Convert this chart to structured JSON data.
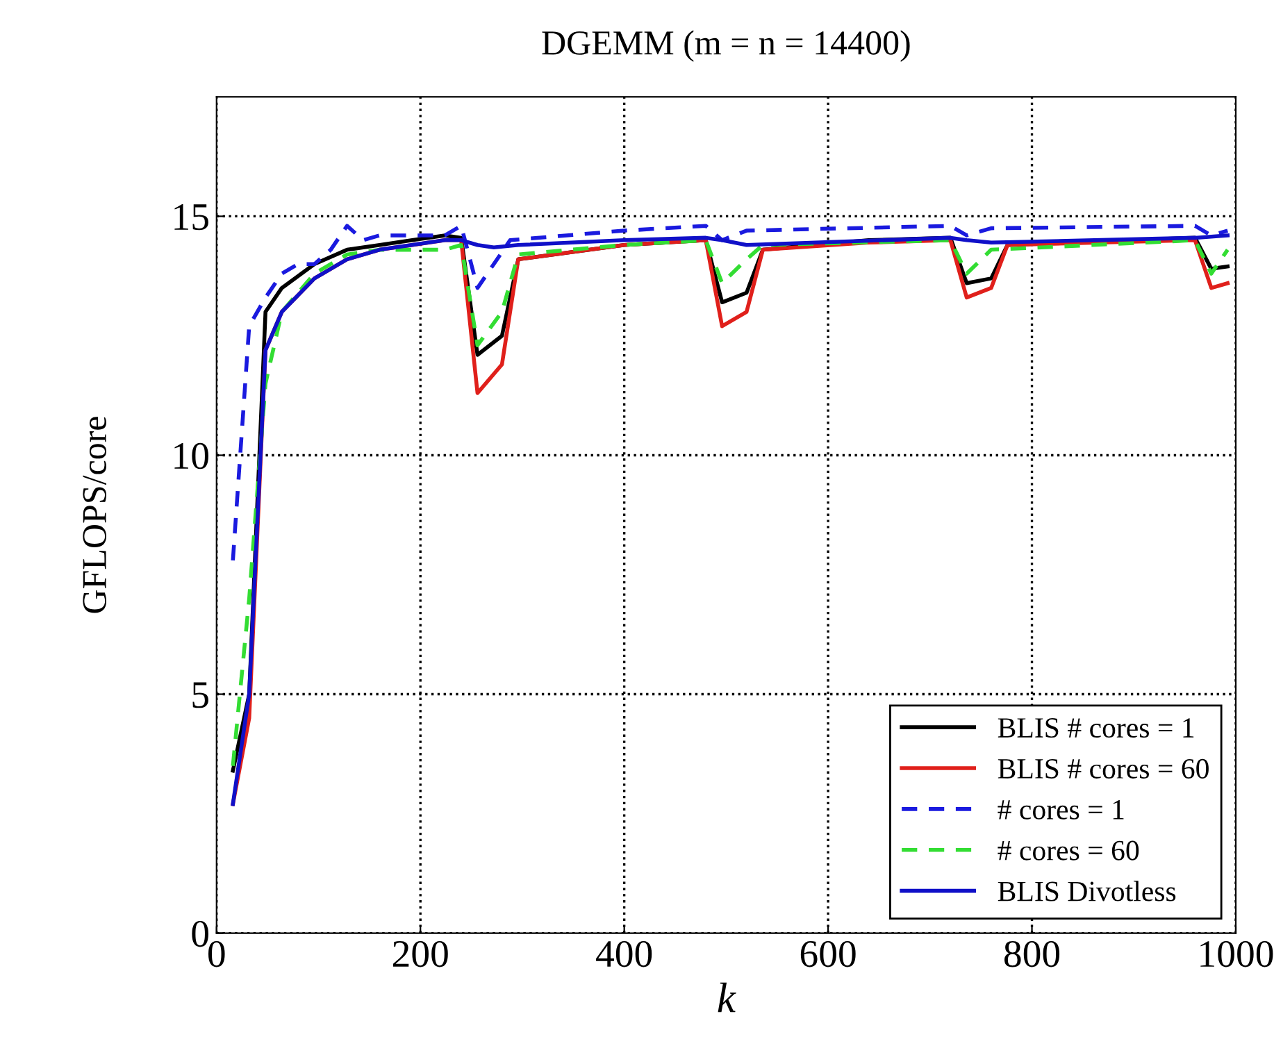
{
  "chart_data": {
    "type": "line",
    "title": "DGEMM (m = n = 14400)",
    "xlabel": "k",
    "ylabel": "GFLOPS/core",
    "xlim": [
      0,
      1000
    ],
    "ylim": [
      0,
      17.5
    ],
    "xticks": [
      0,
      200,
      400,
      600,
      800,
      1000
    ],
    "yticks": [
      0,
      5,
      10,
      15
    ],
    "grid": true,
    "legend": "bottom right",
    "marker": "none",
    "series": [
      {
        "name": "BLIS # cores = 1",
        "color": "#000000",
        "line_style": "solid",
        "x": [
          16,
          32,
          48,
          64,
          96,
          128,
          160,
          192,
          224,
          240,
          256,
          280,
          296,
          400,
          480,
          496,
          520,
          536,
          640,
          720,
          736,
          760,
          776,
          960,
          976,
          992
        ],
        "values": [
          3.4,
          5.0,
          13.0,
          13.5,
          14.0,
          14.3,
          14.4,
          14.5,
          14.6,
          14.55,
          12.1,
          12.5,
          14.1,
          14.4,
          14.5,
          13.2,
          13.4,
          14.3,
          14.5,
          14.55,
          13.6,
          13.7,
          14.4,
          14.55,
          13.9,
          13.95
        ]
      },
      {
        "name": "BLIS # cores = 60",
        "color": "#e0201b",
        "line_style": "solid",
        "x": [
          16,
          32,
          48,
          64,
          96,
          128,
          160,
          192,
          224,
          240,
          256,
          280,
          296,
          400,
          480,
          496,
          520,
          536,
          640,
          720,
          736,
          760,
          776,
          960,
          976,
          992
        ],
        "values": [
          2.7,
          4.5,
          12.2,
          13.0,
          13.7,
          14.1,
          14.3,
          14.4,
          14.5,
          14.5,
          11.3,
          11.9,
          14.1,
          14.4,
          14.5,
          12.7,
          13.0,
          14.3,
          14.45,
          14.5,
          13.3,
          13.5,
          14.4,
          14.5,
          13.5,
          13.6
        ]
      },
      {
        "name": "# cores = 1",
        "color": "#1a1adf",
        "line_style": "dashed",
        "x": [
          16,
          32,
          48,
          64,
          80,
          96,
          112,
          128,
          144,
          160,
          224,
          240,
          256,
          272,
          288,
          400,
          480,
          496,
          520,
          720,
          736,
          760,
          960,
          976,
          992
        ],
        "values": [
          7.8,
          12.7,
          13.3,
          13.8,
          14.0,
          14.0,
          14.3,
          14.8,
          14.5,
          14.6,
          14.6,
          14.8,
          13.5,
          14.0,
          14.5,
          14.7,
          14.8,
          14.5,
          14.7,
          14.8,
          14.6,
          14.75,
          14.8,
          14.6,
          14.7
        ]
      },
      {
        "name": "# cores = 60",
        "color": "#33dd33",
        "line_style": "dashed",
        "x": [
          16,
          32,
          48,
          64,
          96,
          128,
          160,
          224,
          240,
          256,
          280,
          296,
          400,
          480,
          496,
          520,
          536,
          720,
          736,
          760,
          960,
          976,
          992
        ],
        "values": [
          3.5,
          7.0,
          11.5,
          13.0,
          13.8,
          14.2,
          14.3,
          14.3,
          14.4,
          12.3,
          13.0,
          14.2,
          14.4,
          14.5,
          13.6,
          14.1,
          14.4,
          14.5,
          13.8,
          14.3,
          14.5,
          13.8,
          14.3
        ]
      },
      {
        "name": "BLIS Divotless",
        "color": "#1010c8",
        "line_style": "solid",
        "x": [
          16,
          32,
          48,
          64,
          96,
          128,
          160,
          224,
          240,
          256,
          272,
          296,
          400,
          480,
          496,
          520,
          720,
          736,
          760,
          960,
          992
        ],
        "values": [
          2.7,
          5.0,
          12.2,
          13.0,
          13.7,
          14.1,
          14.3,
          14.5,
          14.5,
          14.4,
          14.35,
          14.4,
          14.5,
          14.55,
          14.5,
          14.4,
          14.55,
          14.5,
          14.45,
          14.55,
          14.6
        ]
      }
    ]
  }
}
